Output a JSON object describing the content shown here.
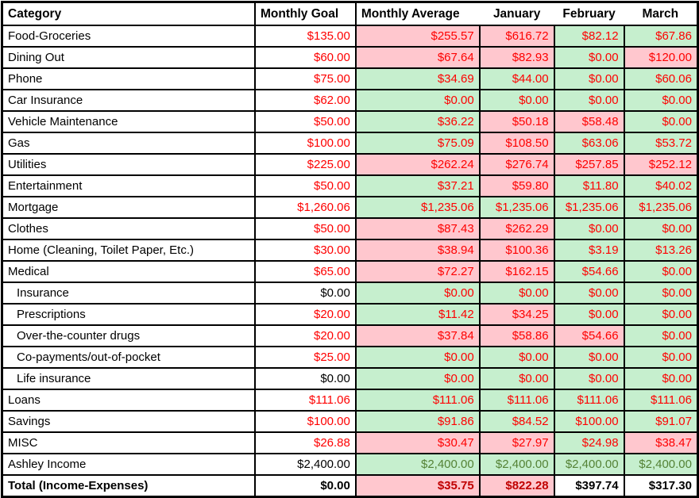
{
  "header": {
    "columns": [
      "Category",
      "Monthly Goal",
      "Monthly Average",
      "January",
      "February",
      "March"
    ]
  },
  "colors": {
    "bad_fill": "#ffc7ce",
    "good_fill": "#c6efce",
    "red_text": "#fe0000",
    "income_green_text": "#548235",
    "total_darkred_text": "#c00000",
    "border": "#000000"
  },
  "rows": [
    {
      "category": "Food-Groceries",
      "indent": false,
      "bold": false,
      "goal": "$135.00",
      "goal_style": "red",
      "cells": [
        {
          "v": "$255.57",
          "s": "bad"
        },
        {
          "v": "$616.72",
          "s": "bad"
        },
        {
          "v": "$82.12",
          "s": "good"
        },
        {
          "v": "$67.86",
          "s": "good"
        }
      ]
    },
    {
      "category": "Dining Out",
      "indent": false,
      "bold": false,
      "goal": "$60.00",
      "goal_style": "red",
      "cells": [
        {
          "v": "$67.64",
          "s": "bad"
        },
        {
          "v": "$82.93",
          "s": "bad"
        },
        {
          "v": "$0.00",
          "s": "good"
        },
        {
          "v": "$120.00",
          "s": "bad"
        }
      ]
    },
    {
      "category": "Phone",
      "indent": false,
      "bold": false,
      "goal": "$75.00",
      "goal_style": "red",
      "cells": [
        {
          "v": "$34.69",
          "s": "good"
        },
        {
          "v": "$44.00",
          "s": "good"
        },
        {
          "v": "$0.00",
          "s": "good"
        },
        {
          "v": "$60.06",
          "s": "good"
        }
      ]
    },
    {
      "category": "Car Insurance",
      "indent": false,
      "bold": false,
      "goal": "$62.00",
      "goal_style": "red",
      "cells": [
        {
          "v": "$0.00",
          "s": "good"
        },
        {
          "v": "$0.00",
          "s": "good"
        },
        {
          "v": "$0.00",
          "s": "good"
        },
        {
          "v": "$0.00",
          "s": "good"
        }
      ]
    },
    {
      "category": "Vehicle Maintenance",
      "indent": false,
      "bold": false,
      "goal": "$50.00",
      "goal_style": "red",
      "cells": [
        {
          "v": "$36.22",
          "s": "good"
        },
        {
          "v": "$50.18",
          "s": "bad"
        },
        {
          "v": "$58.48",
          "s": "bad"
        },
        {
          "v": "$0.00",
          "s": "good"
        }
      ]
    },
    {
      "category": "Gas",
      "indent": false,
      "bold": false,
      "goal": "$100.00",
      "goal_style": "red",
      "cells": [
        {
          "v": "$75.09",
          "s": "good"
        },
        {
          "v": "$108.50",
          "s": "bad"
        },
        {
          "v": "$63.06",
          "s": "good"
        },
        {
          "v": "$53.72",
          "s": "good"
        }
      ]
    },
    {
      "category": "Utilities",
      "indent": false,
      "bold": false,
      "goal": "$225.00",
      "goal_style": "red",
      "cells": [
        {
          "v": "$262.24",
          "s": "bad"
        },
        {
          "v": "$276.74",
          "s": "bad"
        },
        {
          "v": "$257.85",
          "s": "bad"
        },
        {
          "v": "$252.12",
          "s": "bad"
        }
      ]
    },
    {
      "category": "Entertainment",
      "indent": false,
      "bold": false,
      "goal": "$50.00",
      "goal_style": "red",
      "cells": [
        {
          "v": "$37.21",
          "s": "good"
        },
        {
          "v": "$59.80",
          "s": "bad"
        },
        {
          "v": "$11.80",
          "s": "good"
        },
        {
          "v": "$40.02",
          "s": "good"
        }
      ]
    },
    {
      "category": "Mortgage",
      "indent": false,
      "bold": false,
      "goal": "$1,260.06",
      "goal_style": "red",
      "cells": [
        {
          "v": "$1,235.06",
          "s": "good"
        },
        {
          "v": "$1,235.06",
          "s": "good"
        },
        {
          "v": "$1,235.06",
          "s": "good"
        },
        {
          "v": "$1,235.06",
          "s": "good"
        }
      ]
    },
    {
      "category": "Clothes",
      "indent": false,
      "bold": false,
      "goal": "$50.00",
      "goal_style": "red",
      "cells": [
        {
          "v": "$87.43",
          "s": "bad"
        },
        {
          "v": "$262.29",
          "s": "bad"
        },
        {
          "v": "$0.00",
          "s": "good"
        },
        {
          "v": "$0.00",
          "s": "good"
        }
      ]
    },
    {
      "category": "Home (Cleaning, Toilet Paper, Etc.)",
      "indent": false,
      "bold": false,
      "goal": "$30.00",
      "goal_style": "red",
      "cells": [
        {
          "v": "$38.94",
          "s": "bad"
        },
        {
          "v": "$100.36",
          "s": "bad"
        },
        {
          "v": "$3.19",
          "s": "good"
        },
        {
          "v": "$13.26",
          "s": "good"
        }
      ]
    },
    {
      "category": "Medical",
      "indent": false,
      "bold": false,
      "goal": "$65.00",
      "goal_style": "red",
      "cells": [
        {
          "v": "$72.27",
          "s": "bad"
        },
        {
          "v": "$162.15",
          "s": "bad"
        },
        {
          "v": "$54.66",
          "s": "good"
        },
        {
          "v": "$0.00",
          "s": "good"
        }
      ]
    },
    {
      "category": "Insurance",
      "indent": true,
      "bold": false,
      "goal": "$0.00",
      "goal_style": "black",
      "cells": [
        {
          "v": "$0.00",
          "s": "good"
        },
        {
          "v": "$0.00",
          "s": "good"
        },
        {
          "v": "$0.00",
          "s": "good"
        },
        {
          "v": "$0.00",
          "s": "good"
        }
      ]
    },
    {
      "category": "Prescriptions",
      "indent": true,
      "bold": false,
      "goal": "$20.00",
      "goal_style": "red",
      "cells": [
        {
          "v": "$11.42",
          "s": "good"
        },
        {
          "v": "$34.25",
          "s": "bad"
        },
        {
          "v": "$0.00",
          "s": "good"
        },
        {
          "v": "$0.00",
          "s": "good"
        }
      ]
    },
    {
      "category": "Over-the-counter drugs",
      "indent": true,
      "bold": false,
      "goal": "$20.00",
      "goal_style": "red",
      "cells": [
        {
          "v": "$37.84",
          "s": "bad"
        },
        {
          "v": "$58.86",
          "s": "bad"
        },
        {
          "v": "$54.66",
          "s": "bad"
        },
        {
          "v": "$0.00",
          "s": "good"
        }
      ]
    },
    {
      "category": "Co-payments/out-of-pocket",
      "indent": true,
      "bold": false,
      "goal": "$25.00",
      "goal_style": "red",
      "cells": [
        {
          "v": "$0.00",
          "s": "good"
        },
        {
          "v": "$0.00",
          "s": "good"
        },
        {
          "v": "$0.00",
          "s": "good"
        },
        {
          "v": "$0.00",
          "s": "good"
        }
      ]
    },
    {
      "category": "Life insurance",
      "indent": true,
      "bold": false,
      "goal": "$0.00",
      "goal_style": "black",
      "cells": [
        {
          "v": "$0.00",
          "s": "good"
        },
        {
          "v": "$0.00",
          "s": "good"
        },
        {
          "v": "$0.00",
          "s": "good"
        },
        {
          "v": "$0.00",
          "s": "good"
        }
      ]
    },
    {
      "category": "Loans",
      "indent": false,
      "bold": false,
      "goal": "$111.06",
      "goal_style": "red",
      "cells": [
        {
          "v": "$111.06",
          "s": "good"
        },
        {
          "v": "$111.06",
          "s": "good"
        },
        {
          "v": "$111.06",
          "s": "good"
        },
        {
          "v": "$111.06",
          "s": "good"
        }
      ]
    },
    {
      "category": "Savings",
      "indent": false,
      "bold": false,
      "goal": "$100.00",
      "goal_style": "red",
      "cells": [
        {
          "v": "$91.86",
          "s": "good"
        },
        {
          "v": "$84.52",
          "s": "good"
        },
        {
          "v": "$100.00",
          "s": "good"
        },
        {
          "v": "$91.07",
          "s": "good"
        }
      ]
    },
    {
      "category": "MISC",
      "indent": false,
      "bold": false,
      "goal": "$26.88",
      "goal_style": "red",
      "cells": [
        {
          "v": "$30.47",
          "s": "bad"
        },
        {
          "v": "$27.97",
          "s": "bad"
        },
        {
          "v": "$24.98",
          "s": "good"
        },
        {
          "v": "$38.47",
          "s": "bad"
        }
      ]
    },
    {
      "category": "Ashley Income",
      "indent": false,
      "bold": false,
      "goal": "$2,400.00",
      "goal_style": "black",
      "cells": [
        {
          "v": "$2,400.00",
          "s": "income"
        },
        {
          "v": "$2,400.00",
          "s": "income"
        },
        {
          "v": "$2,400.00",
          "s": "income"
        },
        {
          "v": "$2,400.00",
          "s": "income"
        }
      ]
    },
    {
      "category": "Total (Income-Expenses)",
      "indent": false,
      "bold": true,
      "goal": "$0.00",
      "goal_style": "black",
      "cells": [
        {
          "v": "$35.75",
          "s": "total-bad"
        },
        {
          "v": "$822.28",
          "s": "total-bad"
        },
        {
          "v": "$397.74",
          "s": "total-plain"
        },
        {
          "v": "$317.30",
          "s": "total-plain"
        }
      ]
    }
  ]
}
